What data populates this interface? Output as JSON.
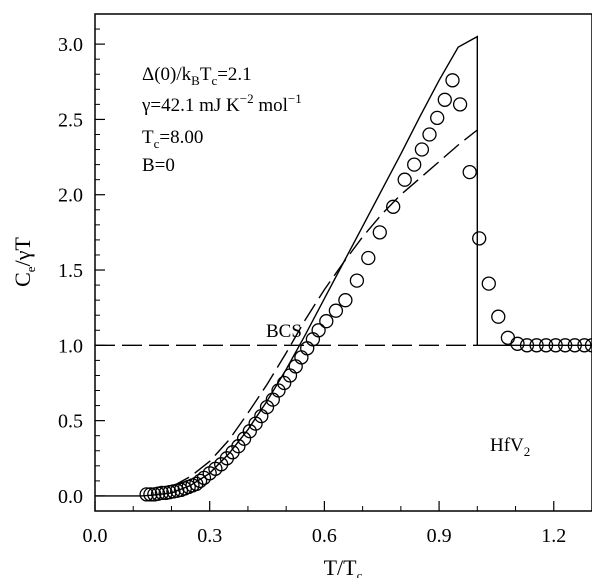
{
  "chart_data": {
    "type": "scatter",
    "title": "",
    "xlabel": {
      "main": "T/T",
      "sub": "c"
    },
    "ylabel": {
      "main": "C",
      "sub": "e",
      "rest": "/γT"
    },
    "xlim": [
      0.0,
      1.3
    ],
    "ylim": [
      -0.1,
      3.2
    ],
    "grid": false,
    "x_ticks": [
      "0.0",
      "0.3",
      "0.6",
      "0.9",
      "1.2"
    ],
    "x_tick_values": [
      0.0,
      0.3,
      0.6,
      0.9,
      1.2
    ],
    "y_ticks": [
      "0.0",
      "0.5",
      "1.0",
      "1.5",
      "2.0",
      "2.5",
      "3.0"
    ],
    "y_tick_values": [
      0.0,
      0.5,
      1.0,
      1.5,
      2.0,
      2.5,
      3.0
    ],
    "annotations": {
      "line1": {
        "a": "Δ(0)/k",
        "b": "B",
        "c": "T",
        "d": "c",
        "e": "=2.1"
      },
      "line2": {
        "a": "γ=42.1 mJ K",
        "b": "−2",
        "c": " mol",
        "d": "−1"
      },
      "line3": {
        "a": "T",
        "b": "c",
        "c": "=8.00"
      },
      "line4": "B=0",
      "bcs_label": "BCS",
      "material": {
        "a": "HfV",
        "b": "2"
      }
    },
    "series": [
      {
        "style": "open-circle",
        "x": [
          0.135,
          0.145,
          0.155,
          0.165,
          0.175,
          0.185,
          0.195,
          0.205,
          0.215,
          0.225,
          0.235,
          0.245,
          0.255,
          0.265,
          0.275,
          0.285,
          0.3,
          0.315,
          0.33,
          0.345,
          0.36,
          0.375,
          0.39,
          0.405,
          0.42,
          0.435,
          0.45,
          0.465,
          0.48,
          0.495,
          0.51,
          0.525,
          0.54,
          0.555,
          0.57,
          0.585,
          0.605,
          0.63,
          0.655,
          0.685,
          0.715,
          0.745,
          0.78,
          0.81,
          0.835,
          0.855,
          0.875,
          0.895,
          0.915,
          0.935,
          0.955,
          0.98,
          1.005,
          1.03,
          1.055,
          1.08,
          1.105,
          1.13,
          1.155,
          1.18,
          1.205,
          1.23,
          1.255,
          1.28,
          1.3
        ],
        "y": [
          0.01,
          0.01,
          0.01,
          0.015,
          0.02,
          0.02,
          0.025,
          0.03,
          0.035,
          0.04,
          0.05,
          0.06,
          0.07,
          0.08,
          0.1,
          0.12,
          0.15,
          0.18,
          0.21,
          0.25,
          0.29,
          0.33,
          0.38,
          0.43,
          0.48,
          0.53,
          0.59,
          0.64,
          0.7,
          0.75,
          0.8,
          0.86,
          0.92,
          0.98,
          1.04,
          1.1,
          1.16,
          1.23,
          1.3,
          1.43,
          1.58,
          1.75,
          1.92,
          2.1,
          2.2,
          2.3,
          2.4,
          2.51,
          2.63,
          2.76,
          2.6,
          2.15,
          1.71,
          1.41,
          1.19,
          1.05,
          1.01,
          1.0,
          1.0,
          1.0,
          1.0,
          1.0,
          1.0,
          1.0,
          1.0
        ]
      },
      {
        "style": "solid",
        "x": [
          0.0,
          0.12,
          0.15,
          0.2,
          0.25,
          0.3,
          0.35,
          0.4,
          0.45,
          0.5,
          0.55,
          0.6,
          0.65,
          0.7,
          0.75,
          0.8,
          0.85,
          0.9,
          0.95,
          1.0,
          1.0,
          1.0,
          1.3
        ],
        "y": [
          0.0,
          0.0,
          0.005,
          0.02,
          0.07,
          0.15,
          0.28,
          0.44,
          0.63,
          0.84,
          1.07,
          1.31,
          1.55,
          1.79,
          2.03,
          2.27,
          2.52,
          2.76,
          2.98,
          3.05,
          1.0,
          1.0,
          1.0
        ]
      },
      {
        "style": "dashed",
        "x": [
          0.2,
          0.25,
          0.3,
          0.35,
          0.4,
          0.45,
          0.5,
          0.55,
          0.6,
          0.65,
          0.7,
          0.75,
          0.8,
          0.85,
          0.9,
          0.95,
          1.0
        ],
        "y": [
          0.06,
          0.13,
          0.23,
          0.37,
          0.55,
          0.74,
          0.95,
          1.17,
          1.37,
          1.55,
          1.72,
          1.87,
          2.0,
          2.11,
          2.22,
          2.33,
          2.43
        ]
      },
      {
        "style": "dashed",
        "x": [
          0.0,
          1.0
        ],
        "y": [
          1.0,
          1.0
        ]
      }
    ]
  }
}
